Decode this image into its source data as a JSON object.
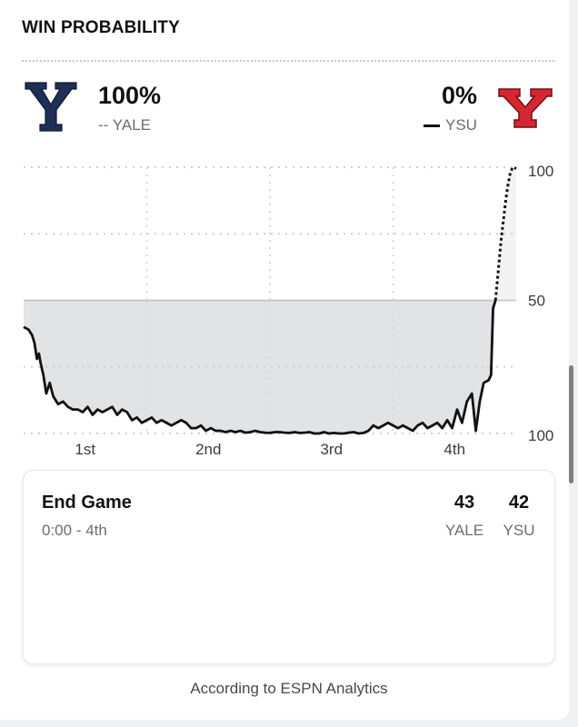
{
  "header": {
    "title": "WIN PROBABILITY"
  },
  "teams": {
    "home": {
      "pct": "100%",
      "legend": "-- YALE",
      "color": "#1f2f55"
    },
    "away": {
      "pct": "0%",
      "legend": "YSU",
      "color": "#d62631"
    }
  },
  "chart_data": {
    "type": "line",
    "y_ticks": [
      "100",
      "50",
      "100"
    ],
    "x_ticks": [
      "1st",
      "2nd",
      "3rd",
      "4th"
    ],
    "ylim": [
      0,
      100
    ],
    "grid": true,
    "midline": 50,
    "series": [
      {
        "name": "YSU",
        "style": "solid",
        "x": [
          0,
          1,
          1.7,
          2.2,
          2.7,
          3.1,
          3.5,
          4,
          4.6,
          5.3,
          6,
          7,
          8,
          9,
          10,
          11,
          12,
          13,
          14,
          15,
          16,
          17,
          18,
          19,
          20,
          21,
          22,
          23,
          24,
          25,
          26,
          27,
          28,
          29,
          30,
          31,
          32,
          33,
          34,
          35,
          36,
          37,
          38,
          39,
          40,
          41,
          42,
          43,
          44,
          45,
          46,
          47,
          48,
          49,
          50,
          51,
          52,
          53,
          54,
          55,
          56,
          57,
          58,
          59,
          60,
          61,
          62,
          63,
          64,
          65,
          66,
          67,
          68,
          69,
          70,
          71,
          72,
          73,
          74,
          75,
          76,
          77,
          78,
          79,
          80,
          81,
          82,
          83,
          84,
          85,
          86,
          87,
          88,
          89,
          90,
          91,
          91.8,
          92.6,
          93.4,
          94.4,
          94.9,
          95.3,
          95.8
        ],
        "values": [
          40,
          39,
          37,
          34,
          28,
          30,
          26,
          22,
          15,
          19,
          14,
          11,
          12,
          10,
          9,
          9,
          8,
          10,
          7,
          9,
          8,
          9,
          10,
          7,
          9,
          8,
          5,
          6,
          4,
          5,
          6,
          4,
          5,
          4,
          3,
          4,
          5,
          4,
          2,
          2,
          3,
          1,
          2,
          1,
          1,
          0.5,
          1,
          0.5,
          1,
          0.3,
          0.5,
          1,
          0.5,
          0.3,
          0.2,
          0.5,
          0.5,
          0.3,
          0.2,
          0.5,
          0.2,
          0.3,
          0.5,
          0,
          0,
          0.5,
          0,
          0.2,
          0,
          0,
          0.3,
          0.5,
          0,
          0.2,
          1,
          3,
          2,
          3,
          4,
          3,
          2,
          3,
          2,
          1,
          3,
          4,
          2,
          3,
          4,
          2,
          5,
          2,
          9,
          4,
          12,
          15,
          1,
          12,
          19,
          20,
          22,
          47,
          50
        ]
      },
      {
        "name": "YALE",
        "style": "dotted",
        "x": [
          95.8,
          96.2,
          96.6,
          97.0,
          97.4,
          97.9,
          98.3,
          98.8,
          99.3,
          100
        ],
        "values": [
          50,
          58,
          66,
          74,
          80,
          88,
          93,
          98,
          100,
          99.5
        ]
      }
    ],
    "x_ticks_at": [
      12.5,
      37.5,
      62.5,
      87.5
    ]
  },
  "end_game": {
    "title": "End Game",
    "time": "0:00 - 4th",
    "home_score": "43",
    "away_score": "42",
    "home_abbr": "YALE",
    "away_abbr": "YSU"
  },
  "footer": {
    "text": "According to ESPN Analytics"
  }
}
